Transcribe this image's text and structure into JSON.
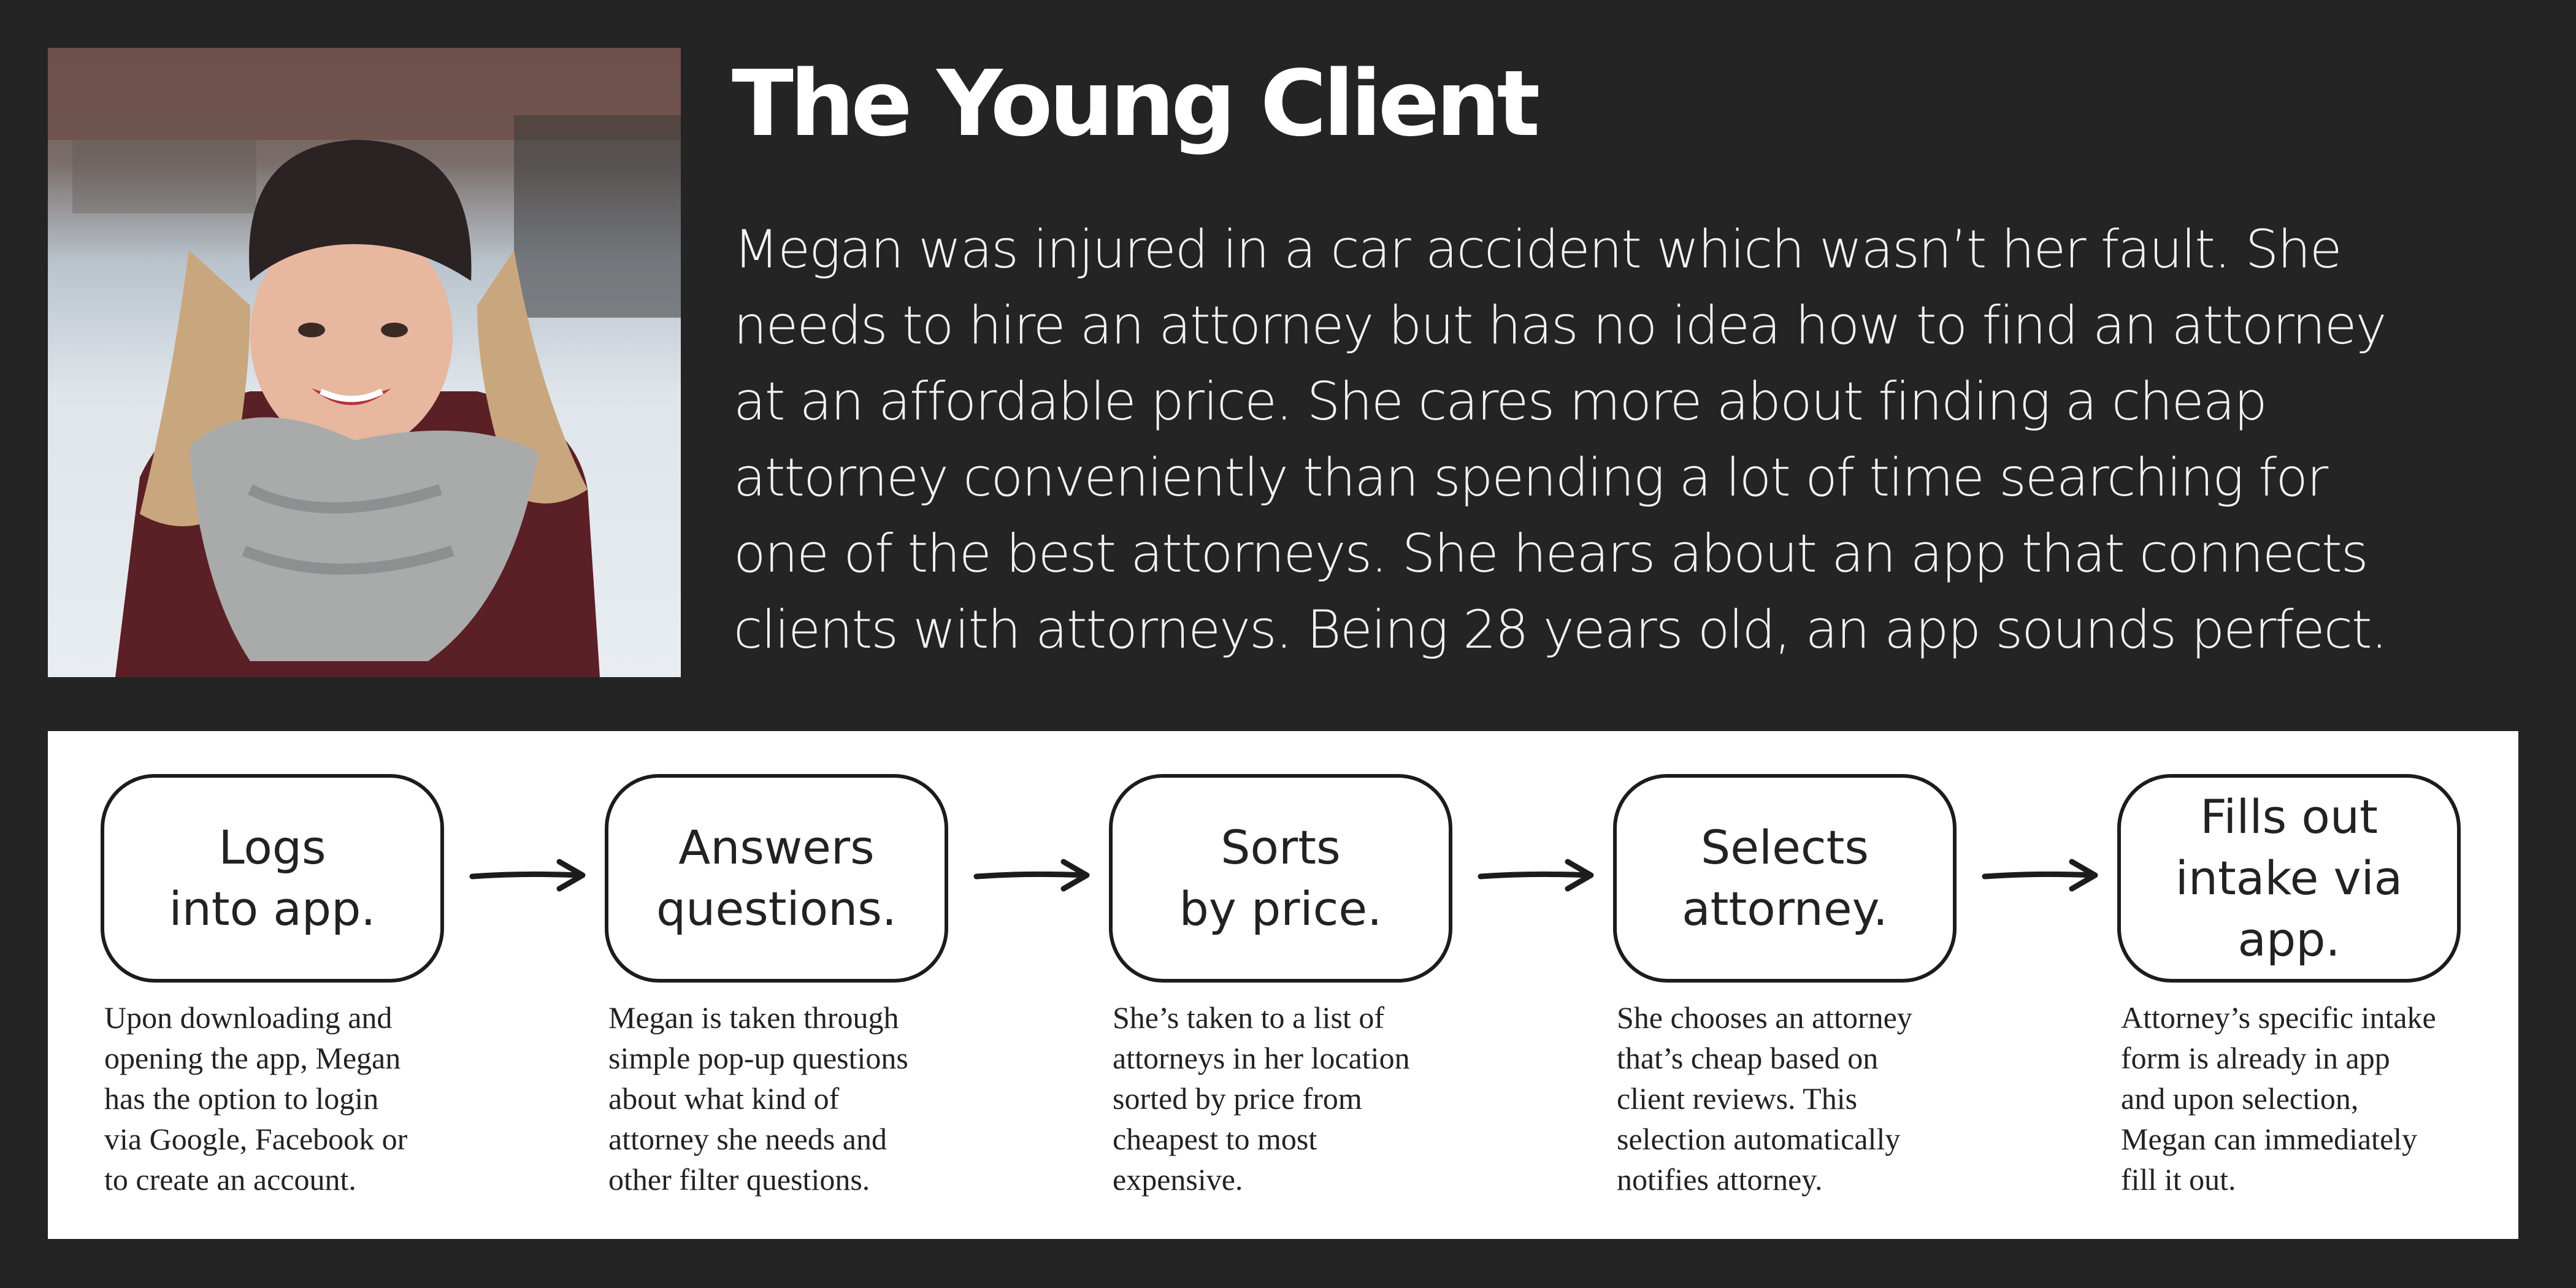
{
  "persona": {
    "title": "The Young Client",
    "story_lines": [
      "Megan was injured in a car accident which wasn’t her fault. She",
      "needs to hire an attorney but has no idea how to find an attorney",
      "at an affordable price. She cares more about finding a cheap",
      "attorney conveniently than spending a lot of time searching for",
      "one of the best attorneys. She hears about an app that connects",
      "clients with attorneys. Being 28 years old, an app sounds perfect."
    ]
  },
  "flow": {
    "steps": [
      {
        "title": "Logs\ninto app.",
        "desc_lines": [
          "Upon downloading and",
          "opening the app, Megan",
          "has the option to login",
          "via Google, Facebook or",
          "to create an account."
        ]
      },
      {
        "title": "Answers\nquestions.",
        "desc_lines": [
          "Megan is taken through",
          "simple pop-up questions",
          "about what kind of",
          "attorney she needs and",
          "other filter questions."
        ]
      },
      {
        "title": "Sorts\nby price.",
        "desc_lines": [
          "She’s taken to a list of",
          "attorneys in her location",
          "sorted by price from",
          "cheapest to most",
          "expensive."
        ]
      },
      {
        "title": "Selects\nattorney.",
        "desc_lines": [
          "She chooses an attorney",
          "that’s cheap based on",
          "client reviews. This",
          "selection automatically",
          "notifies attorney."
        ]
      },
      {
        "title": "Fills out\nintake via app.",
        "desc_lines": [
          "Attorney’s specific intake",
          "form is already in app",
          "and upon selection,",
          "Megan can immediately",
          "fill it out."
        ]
      }
    ]
  },
  "colors": {
    "background": "#242424",
    "panel": "#ffffff",
    "ink": "#1c1c1c"
  }
}
